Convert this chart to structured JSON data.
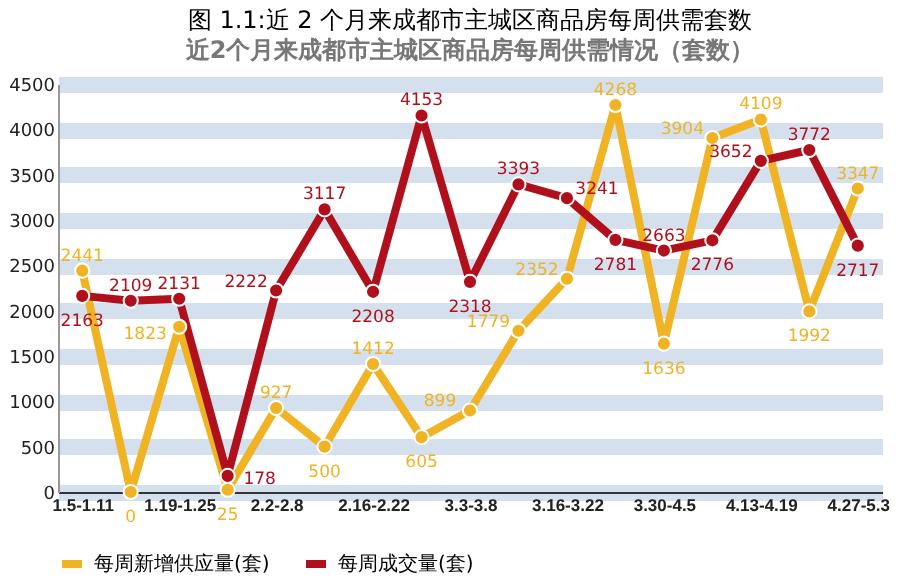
{
  "chart_data": {
    "type": "line",
    "title": "图 1.1:近 2 个月来成都市主城区商品房每周供需套数",
    "subtitle": "近2个月来成都市主城区商品房每周供需情况（套数）",
    "categories": [
      "1.5-1.11",
      null,
      "1.19-1.25",
      null,
      "2.2-2.8",
      null,
      "2.16-2.22",
      null,
      "3.3-3.8",
      null,
      "3.16-3.22",
      null,
      "3.30-4.5",
      null,
      "4.13-4.19",
      null,
      "4.27-5.3"
    ],
    "series": [
      {
        "name": "每周新增供应量(套)",
        "color": "#f0b323",
        "values": [
          2441,
          0,
          1823,
          25,
          927,
          500,
          1412,
          605,
          899,
          1779,
          2352,
          4268,
          1636,
          3904,
          4109,
          1992,
          3347
        ]
      },
      {
        "name": "每周成交量(套)",
        "color": "#b0101b",
        "values": [
          2163,
          2109,
          2131,
          178,
          2222,
          3117,
          2208,
          4153,
          2318,
          3393,
          3241,
          2781,
          2663,
          2776,
          3652,
          3772,
          2717
        ]
      }
    ],
    "ylim": [
      0,
      4500
    ],
    "yticks": [
      0,
      500,
      1000,
      1500,
      2000,
      2500,
      3000,
      3500,
      4000,
      4500
    ],
    "grid": "y",
    "legend": "bottom",
    "marker": "circle",
    "line_style": "solid",
    "data_labels": true
  }
}
